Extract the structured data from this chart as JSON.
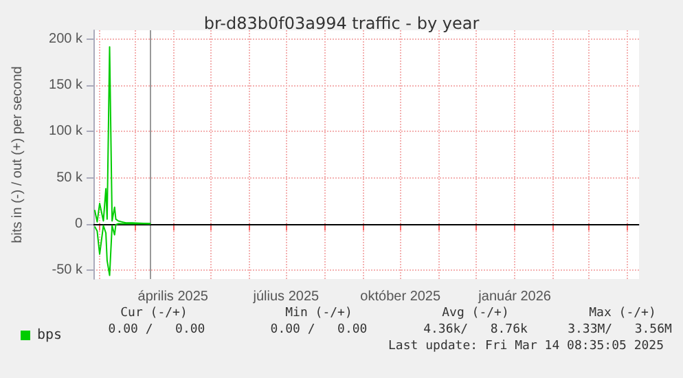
{
  "chart_data": {
    "type": "line",
    "title": "br-d83b0f03a994 traffic - by year",
    "ylabel": "bits in (-) / out (+) per second",
    "x": [
      "2025-01-28",
      "2025-01-30",
      "2025-02-01",
      "2025-02-04",
      "2025-02-06",
      "2025-02-07",
      "2025-02-09",
      "2025-02-11",
      "2025-02-13",
      "2025-02-14",
      "2025-02-16",
      "2025-02-19",
      "2025-02-22",
      "2025-02-27",
      "2025-03-14"
    ],
    "series": [
      {
        "name": "bps",
        "color": "#00cc00",
        "values": [
          15000,
          2000,
          22000,
          3000,
          38000,
          5000,
          192000,
          3000,
          18000,
          5000,
          3000,
          2000,
          1000,
          1000,
          0
        ]
      },
      {
        "color": "#00cc00",
        "values": [
          -3000,
          -8000,
          -33000,
          -2000,
          -10000,
          -40000,
          -56000,
          -2000,
          -12000,
          -1000,
          0,
          0,
          0,
          0,
          0
        ]
      }
    ],
    "xlim": [
      "2025-01-27",
      "2026-04-11"
    ],
    "xticks": [
      {
        "value": "2025-02-01",
        "label": null
      },
      {
        "value": "2025-03-01",
        "label": null
      },
      {
        "value": "2025-04-01",
        "label": "április 2025"
      },
      {
        "value": "2025-05-01",
        "label": null
      },
      {
        "value": "2025-06-01",
        "label": null
      },
      {
        "value": "2025-07-01",
        "label": "július 2025"
      },
      {
        "value": "2025-08-01",
        "label": null
      },
      {
        "value": "2025-09-01",
        "label": null
      },
      {
        "value": "2025-10-01",
        "label": "október 2025"
      },
      {
        "value": "2025-11-01",
        "label": null
      },
      {
        "value": "2025-12-01",
        "label": null
      },
      {
        "value": "2026-01-01",
        "label": "január 2026"
      },
      {
        "value": "2026-02-01",
        "label": null
      },
      {
        "value": "2026-03-01",
        "label": null
      },
      {
        "value": "2026-04-01",
        "label": null
      }
    ],
    "ylim": [
      -60000,
      210000
    ],
    "yticks": [
      {
        "value": -50000,
        "label": "-50 k"
      },
      {
        "value": 0,
        "label": "0"
      },
      {
        "value": 50000,
        "label": "50 k"
      },
      {
        "value": 100000,
        "label": "100 k"
      },
      {
        "value": 150000,
        "label": "150 k"
      },
      {
        "value": 200000,
        "label": "200 k"
      }
    ],
    "ref_lines": [
      {
        "axis": "x",
        "value": "2025-03-14",
        "color": "#999999"
      },
      {
        "axis": "y",
        "value": 0,
        "color": "#000000"
      }
    ],
    "grid": true,
    "legend": "bottom left",
    "annotations": [
      "Cur (-/+)",
      "Min (-/+)",
      "Avg (-/+)",
      "Max (-/+)",
      "0.00 /   0.00",
      "0.00 /   0.00",
      "4.36k/   8.76k",
      "3.33M/   3.56M",
      "Last update: Fri Mar 14 08:35:05 2025"
    ]
  }
}
